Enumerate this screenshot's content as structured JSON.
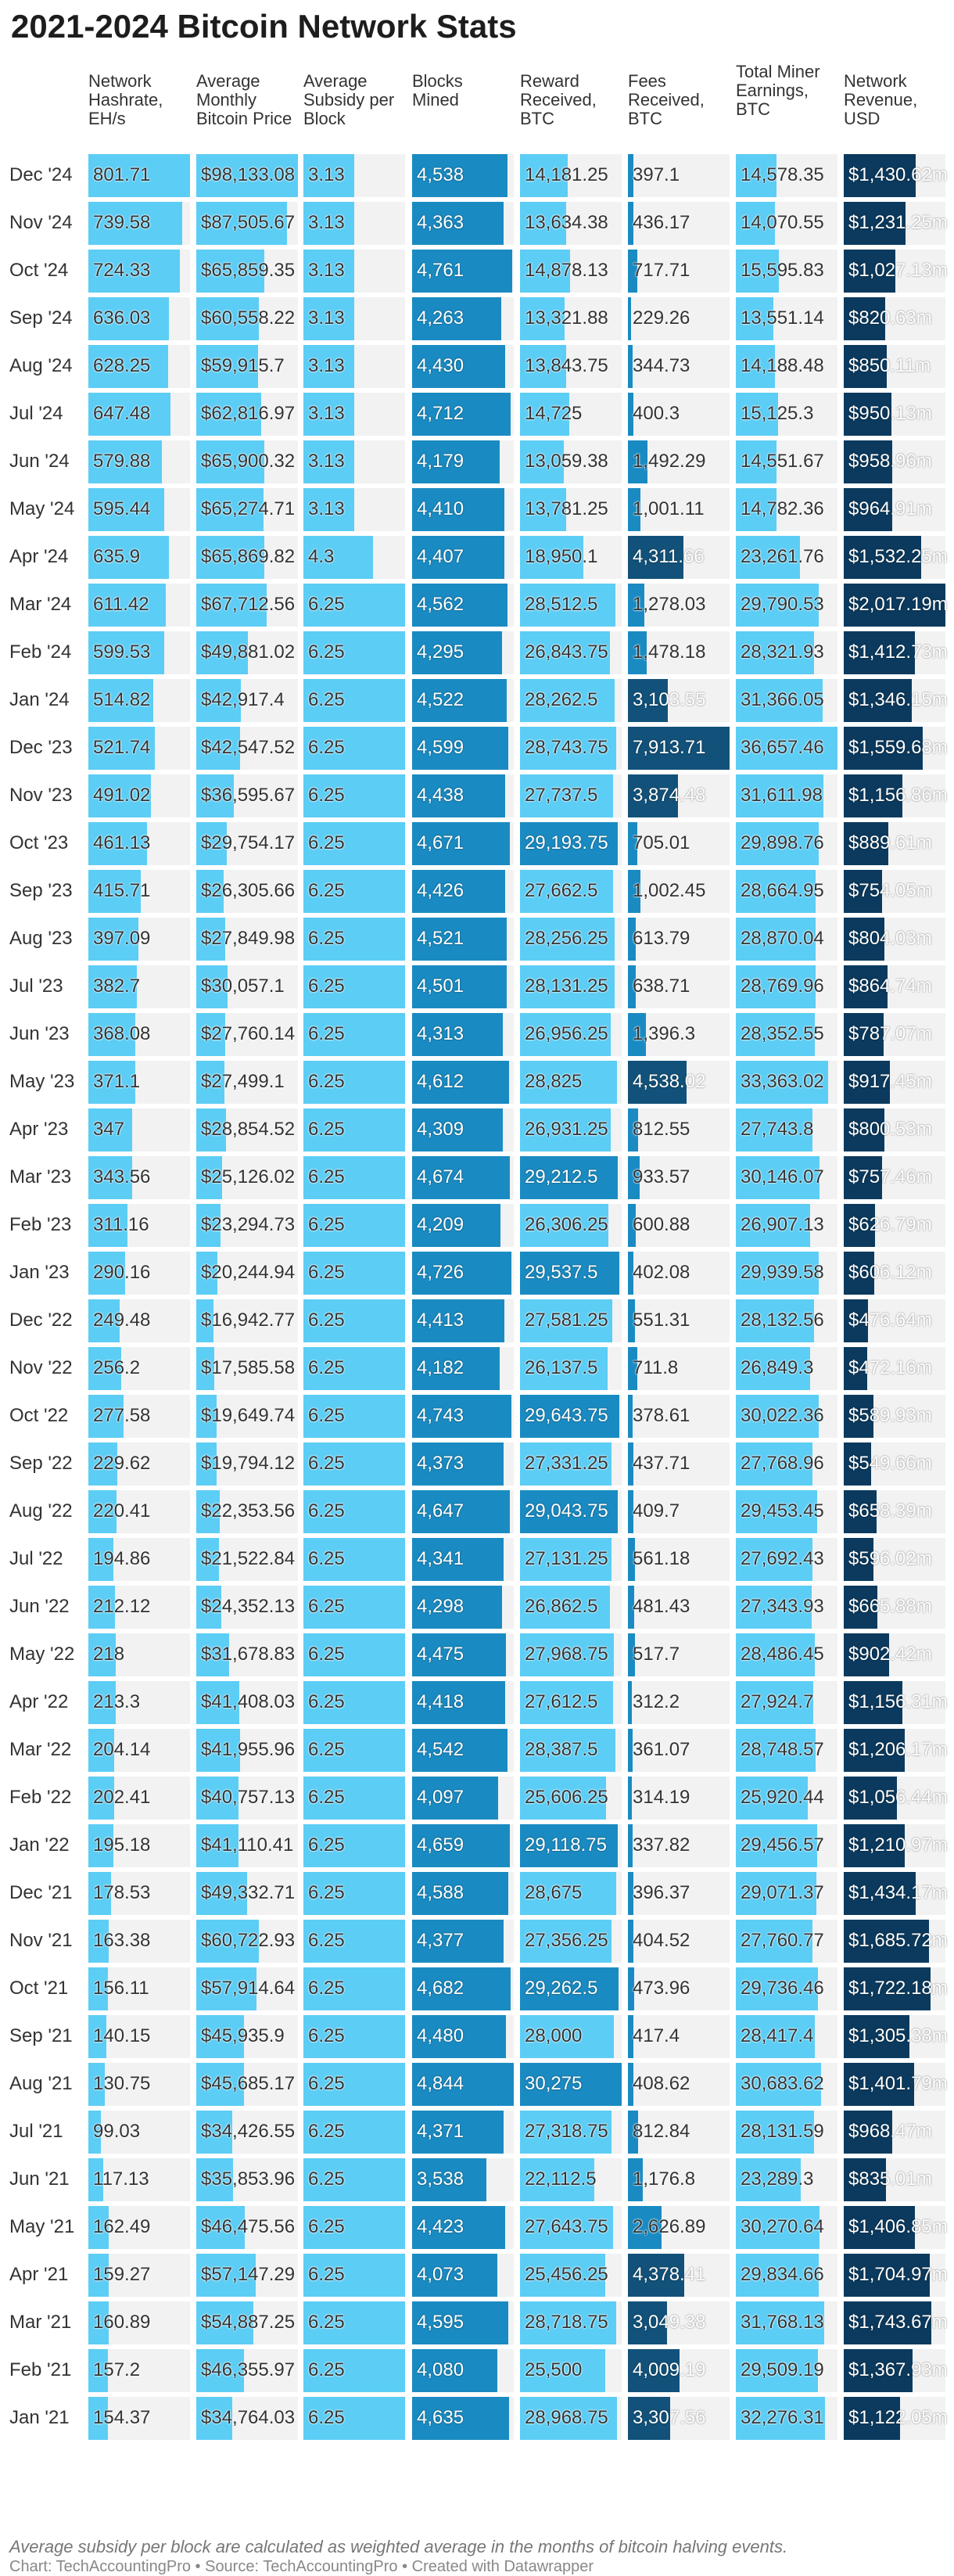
{
  "chart_data": {
    "type": "table",
    "title": "2021-2024 Bitcoin Network Stats",
    "columns": [
      {
        "key": "hashrate",
        "label": "Network Hashrate, EH/s",
        "format": "plain",
        "max": 801.71
      },
      {
        "key": "price",
        "label": "Average Monthly Bitcoin Price",
        "format": "usd",
        "max": 98133.08
      },
      {
        "key": "subsidy",
        "label": "Average Subsidy per Block",
        "format": "plain",
        "max": 6.25
      },
      {
        "key": "blocks",
        "label": "Blocks Mined",
        "format": "int",
        "max": 4844
      },
      {
        "key": "reward",
        "label": "Reward Received, BTC",
        "format": "plain",
        "max": 30275
      },
      {
        "key": "fees",
        "label": "Fees Received, BTC",
        "format": "plain",
        "max": 7913.71
      },
      {
        "key": "earnings",
        "label": "Total Miner Earnings, BTC",
        "format": "plain",
        "max": 36657.46
      },
      {
        "key": "revenue",
        "label": "Network Revenue, USD",
        "format": "usdm",
        "max": 2017.19
      }
    ],
    "rows": [
      {
        "month": "Dec '24",
        "hashrate": 801.71,
        "price": 98133.08,
        "subsidy": 3.13,
        "blocks": 4538,
        "reward": 14181.25,
        "fees": 397.1,
        "earnings": 14578.35,
        "revenue": 1430.62
      },
      {
        "month": "Nov '24",
        "hashrate": 739.58,
        "price": 87505.67,
        "subsidy": 3.13,
        "blocks": 4363,
        "reward": 13634.38,
        "fees": 436.17,
        "earnings": 14070.55,
        "revenue": 1231.25
      },
      {
        "month": "Oct '24",
        "hashrate": 724.33,
        "price": 65859.35,
        "subsidy": 3.13,
        "blocks": 4761,
        "reward": 14878.13,
        "fees": 717.71,
        "earnings": 15595.83,
        "revenue": 1027.13
      },
      {
        "month": "Sep '24",
        "hashrate": 636.03,
        "price": 60558.22,
        "subsidy": 3.13,
        "blocks": 4263,
        "reward": 13321.88,
        "fees": 229.26,
        "earnings": 13551.14,
        "revenue": 820.63
      },
      {
        "month": "Aug '24",
        "hashrate": 628.25,
        "price": 59915.7,
        "subsidy": 3.13,
        "blocks": 4430,
        "reward": 13843.75,
        "fees": 344.73,
        "earnings": 14188.48,
        "revenue": 850.11
      },
      {
        "month": "Jul '24",
        "hashrate": 647.48,
        "price": 62816.97,
        "subsidy": 3.13,
        "blocks": 4712,
        "reward": 14725,
        "fees": 400.3,
        "earnings": 15125.3,
        "revenue": 950.13
      },
      {
        "month": "Jun '24",
        "hashrate": 579.88,
        "price": 65900.32,
        "subsidy": 3.13,
        "blocks": 4179,
        "reward": 13059.38,
        "fees": 1492.29,
        "earnings": 14551.67,
        "revenue": 958.96
      },
      {
        "month": "May '24",
        "hashrate": 595.44,
        "price": 65274.71,
        "subsidy": 3.13,
        "blocks": 4410,
        "reward": 13781.25,
        "fees": 1001.11,
        "earnings": 14782.36,
        "revenue": 964.91
      },
      {
        "month": "Apr '24",
        "hashrate": 635.9,
        "price": 65869.82,
        "subsidy": 4.3,
        "blocks": 4407,
        "reward": 18950.1,
        "fees": 4311.66,
        "earnings": 23261.76,
        "revenue": 1532.25
      },
      {
        "month": "Mar '24",
        "hashrate": 611.42,
        "price": 67712.56,
        "subsidy": 6.25,
        "blocks": 4562,
        "reward": 28512.5,
        "fees": 1278.03,
        "earnings": 29790.53,
        "revenue": 2017.19
      },
      {
        "month": "Feb '24",
        "hashrate": 599.53,
        "price": 49881.02,
        "subsidy": 6.25,
        "blocks": 4295,
        "reward": 26843.75,
        "fees": 1478.18,
        "earnings": 28321.93,
        "revenue": 1412.73
      },
      {
        "month": "Jan '24",
        "hashrate": 514.82,
        "price": 42917.4,
        "subsidy": 6.25,
        "blocks": 4522,
        "reward": 28262.5,
        "fees": 3103.55,
        "earnings": 31366.05,
        "revenue": 1346.15
      },
      {
        "month": "Dec '23",
        "hashrate": 521.74,
        "price": 42547.52,
        "subsidy": 6.25,
        "blocks": 4599,
        "reward": 28743.75,
        "fees": 7913.71,
        "earnings": 36657.46,
        "revenue": 1559.68
      },
      {
        "month": "Nov '23",
        "hashrate": 491.02,
        "price": 36595.67,
        "subsidy": 6.25,
        "blocks": 4438,
        "reward": 27737.5,
        "fees": 3874.48,
        "earnings": 31611.98,
        "revenue": 1156.86
      },
      {
        "month": "Oct '23",
        "hashrate": 461.13,
        "price": 29754.17,
        "subsidy": 6.25,
        "blocks": 4671,
        "reward": 29193.75,
        "fees": 705.01,
        "earnings": 29898.76,
        "revenue": 889.61
      },
      {
        "month": "Sep '23",
        "hashrate": 415.71,
        "price": 26305.66,
        "subsidy": 6.25,
        "blocks": 4426,
        "reward": 27662.5,
        "fees": 1002.45,
        "earnings": 28664.95,
        "revenue": 754.05
      },
      {
        "month": "Aug '23",
        "hashrate": 397.09,
        "price": 27849.98,
        "subsidy": 6.25,
        "blocks": 4521,
        "reward": 28256.25,
        "fees": 613.79,
        "earnings": 28870.04,
        "revenue": 804.03
      },
      {
        "month": "Jul '23",
        "hashrate": 382.7,
        "price": 30057.1,
        "subsidy": 6.25,
        "blocks": 4501,
        "reward": 28131.25,
        "fees": 638.71,
        "earnings": 28769.96,
        "revenue": 864.74
      },
      {
        "month": "Jun '23",
        "hashrate": 368.08,
        "price": 27760.14,
        "subsidy": 6.25,
        "blocks": 4313,
        "reward": 26956.25,
        "fees": 1396.3,
        "earnings": 28352.55,
        "revenue": 787.07
      },
      {
        "month": "May '23",
        "hashrate": 371.1,
        "price": 27499.1,
        "subsidy": 6.25,
        "blocks": 4612,
        "reward": 28825,
        "fees": 4538.02,
        "earnings": 33363.02,
        "revenue": 917.45
      },
      {
        "month": "Apr '23",
        "hashrate": 347,
        "price": 28854.52,
        "subsidy": 6.25,
        "blocks": 4309,
        "reward": 26931.25,
        "fees": 812.55,
        "earnings": 27743.8,
        "revenue": 800.53
      },
      {
        "month": "Mar '23",
        "hashrate": 343.56,
        "price": 25126.02,
        "subsidy": 6.25,
        "blocks": 4674,
        "reward": 29212.5,
        "fees": 933.57,
        "earnings": 30146.07,
        "revenue": 757.46
      },
      {
        "month": "Feb '23",
        "hashrate": 311.16,
        "price": 23294.73,
        "subsidy": 6.25,
        "blocks": 4209,
        "reward": 26306.25,
        "fees": 600.88,
        "earnings": 26907.13,
        "revenue": 626.79
      },
      {
        "month": "Jan '23",
        "hashrate": 290.16,
        "price": 20244.94,
        "subsidy": 6.25,
        "blocks": 4726,
        "reward": 29537.5,
        "fees": 402.08,
        "earnings": 29939.58,
        "revenue": 606.12
      },
      {
        "month": "Dec '22",
        "hashrate": 249.48,
        "price": 16942.77,
        "subsidy": 6.25,
        "blocks": 4413,
        "reward": 27581.25,
        "fees": 551.31,
        "earnings": 28132.56,
        "revenue": 476.64
      },
      {
        "month": "Nov '22",
        "hashrate": 256.2,
        "price": 17585.58,
        "subsidy": 6.25,
        "blocks": 4182,
        "reward": 26137.5,
        "fees": 711.8,
        "earnings": 26849.3,
        "revenue": 472.16
      },
      {
        "month": "Oct '22",
        "hashrate": 277.58,
        "price": 19649.74,
        "subsidy": 6.25,
        "blocks": 4743,
        "reward": 29643.75,
        "fees": 378.61,
        "earnings": 30022.36,
        "revenue": 589.93
      },
      {
        "month": "Sep '22",
        "hashrate": 229.62,
        "price": 19794.12,
        "subsidy": 6.25,
        "blocks": 4373,
        "reward": 27331.25,
        "fees": 437.71,
        "earnings": 27768.96,
        "revenue": 549.66
      },
      {
        "month": "Aug '22",
        "hashrate": 220.41,
        "price": 22353.56,
        "subsidy": 6.25,
        "blocks": 4647,
        "reward": 29043.75,
        "fees": 409.7,
        "earnings": 29453.45,
        "revenue": 658.39
      },
      {
        "month": "Jul '22",
        "hashrate": 194.86,
        "price": 21522.84,
        "subsidy": 6.25,
        "blocks": 4341,
        "reward": 27131.25,
        "fees": 561.18,
        "earnings": 27692.43,
        "revenue": 596.02
      },
      {
        "month": "Jun '22",
        "hashrate": 212.12,
        "price": 24352.13,
        "subsidy": 6.25,
        "blocks": 4298,
        "reward": 26862.5,
        "fees": 481.43,
        "earnings": 27343.93,
        "revenue": 665.88
      },
      {
        "month": "May '22",
        "hashrate": 218,
        "price": 31678.83,
        "subsidy": 6.25,
        "blocks": 4475,
        "reward": 27968.75,
        "fees": 517.7,
        "earnings": 28486.45,
        "revenue": 902.42
      },
      {
        "month": "Apr '22",
        "hashrate": 213.3,
        "price": 41408.03,
        "subsidy": 6.25,
        "blocks": 4418,
        "reward": 27612.5,
        "fees": 312.2,
        "earnings": 27924.7,
        "revenue": 1156.31
      },
      {
        "month": "Mar '22",
        "hashrate": 204.14,
        "price": 41955.96,
        "subsidy": 6.25,
        "blocks": 4542,
        "reward": 28387.5,
        "fees": 361.07,
        "earnings": 28748.57,
        "revenue": 1206.17
      },
      {
        "month": "Feb '22",
        "hashrate": 202.41,
        "price": 40757.13,
        "subsidy": 6.25,
        "blocks": 4097,
        "reward": 25606.25,
        "fees": 314.19,
        "earnings": 25920.44,
        "revenue": 1056.44
      },
      {
        "month": "Jan '22",
        "hashrate": 195.18,
        "price": 41110.41,
        "subsidy": 6.25,
        "blocks": 4659,
        "reward": 29118.75,
        "fees": 337.82,
        "earnings": 29456.57,
        "revenue": 1210.97
      },
      {
        "month": "Dec '21",
        "hashrate": 178.53,
        "price": 49332.71,
        "subsidy": 6.25,
        "blocks": 4588,
        "reward": 28675,
        "fees": 396.37,
        "earnings": 29071.37,
        "revenue": 1434.17
      },
      {
        "month": "Nov '21",
        "hashrate": 163.38,
        "price": 60722.93,
        "subsidy": 6.25,
        "blocks": 4377,
        "reward": 27356.25,
        "fees": 404.52,
        "earnings": 27760.77,
        "revenue": 1685.72
      },
      {
        "month": "Oct '21",
        "hashrate": 156.11,
        "price": 57914.64,
        "subsidy": 6.25,
        "blocks": 4682,
        "reward": 29262.5,
        "fees": 473.96,
        "earnings": 29736.46,
        "revenue": 1722.18
      },
      {
        "month": "Sep '21",
        "hashrate": 140.15,
        "price": 45935.9,
        "subsidy": 6.25,
        "blocks": 4480,
        "reward": 28000,
        "fees": 417.4,
        "earnings": 28417.4,
        "revenue": 1305.38
      },
      {
        "month": "Aug '21",
        "hashrate": 130.75,
        "price": 45685.17,
        "subsidy": 6.25,
        "blocks": 4844,
        "reward": 30275,
        "fees": 408.62,
        "earnings": 30683.62,
        "revenue": 1401.79
      },
      {
        "month": "Jul '21",
        "hashrate": 99.03,
        "price": 34426.55,
        "subsidy": 6.25,
        "blocks": 4371,
        "reward": 27318.75,
        "fees": 812.84,
        "earnings": 28131.59,
        "revenue": 968.47
      },
      {
        "month": "Jun '21",
        "hashrate": 117.13,
        "price": 35853.96,
        "subsidy": 6.25,
        "blocks": 3538,
        "reward": 22112.5,
        "fees": 1176.8,
        "earnings": 23289.3,
        "revenue": 835.01
      },
      {
        "month": "May '21",
        "hashrate": 162.49,
        "price": 46475.56,
        "subsidy": 6.25,
        "blocks": 4423,
        "reward": 27643.75,
        "fees": 2626.89,
        "earnings": 30270.64,
        "revenue": 1406.85
      },
      {
        "month": "Apr '21",
        "hashrate": 159.27,
        "price": 57147.29,
        "subsidy": 6.25,
        "blocks": 4073,
        "reward": 25456.25,
        "fees": 4378.41,
        "earnings": 29834.66,
        "revenue": 1704.97
      },
      {
        "month": "Mar '21",
        "hashrate": 160.89,
        "price": 54887.25,
        "subsidy": 6.25,
        "blocks": 4595,
        "reward": 28718.75,
        "fees": 3049.38,
        "earnings": 31768.13,
        "revenue": 1743.67
      },
      {
        "month": "Feb '21",
        "hashrate": 157.2,
        "price": 46355.97,
        "subsidy": 6.25,
        "blocks": 4080,
        "reward": 25500,
        "fees": 4009.19,
        "earnings": 29509.19,
        "revenue": 1367.93
      },
      {
        "month": "Jan '21",
        "hashrate": 154.37,
        "price": 34764.03,
        "subsidy": 6.25,
        "blocks": 4635,
        "reward": 28968.75,
        "fees": 3307.56,
        "earnings": 32276.31,
        "revenue": 1122.05
      }
    ]
  },
  "footer": {
    "note": "Average subsidy per block are calculated as weighted average in the months of bitcoin halving events.",
    "source": "Chart: TechAccountingPro • Source: TechAccountingPro • Created with Datawrapper"
  },
  "colors": {
    "light": "#5ccdf5",
    "mid": "#1a8bc2",
    "dark": "#12527a",
    "darkest": "#0b3a5e",
    "cellbg": "#f2f2f2"
  }
}
